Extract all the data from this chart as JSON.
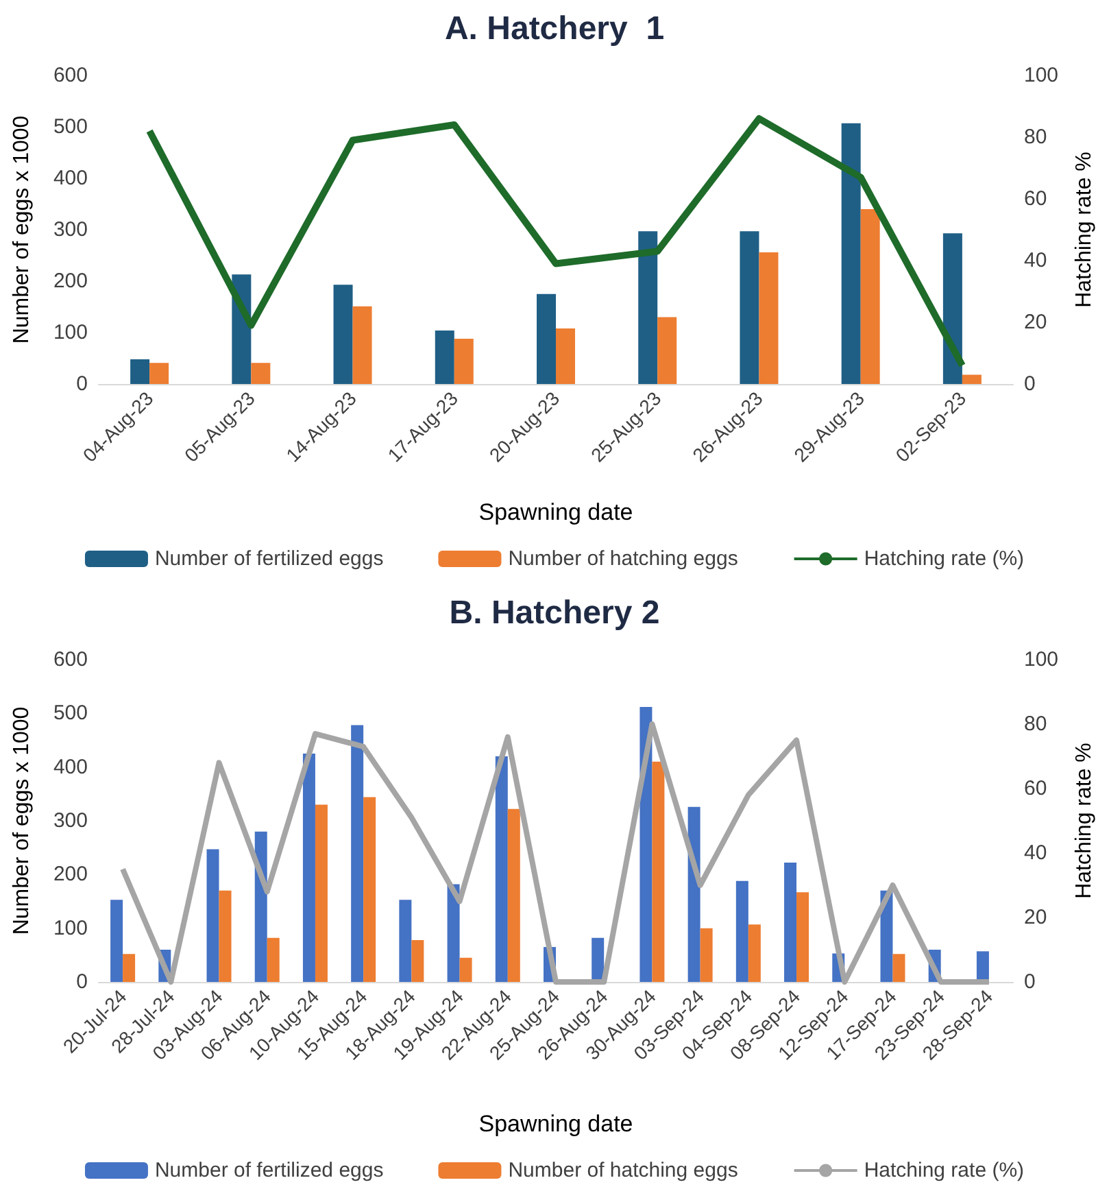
{
  "chart_data": [
    {
      "type": "bar",
      "title": "A. Hatchery  1",
      "xlabel": "Spawning date",
      "ylabel": "Number of eggs x 1000",
      "y2label": "Hatching rate %",
      "categories": [
        "04-Aug-23",
        "05-Aug-23",
        "14-Aug-23",
        "17-Aug-23",
        "20-Aug-23",
        "25-Aug-23",
        "26-Aug-23",
        "29-Aug-23",
        "02-Sep-23"
      ],
      "series": [
        {
          "name": "Number of fertilized eggs",
          "color": "#1f5f86",
          "values": [
            48,
            213,
            193,
            104,
            175,
            297,
            297,
            507,
            293
          ]
        },
        {
          "name": "Number of hatching eggs",
          "color": "#ed7d31",
          "values": [
            41,
            41,
            151,
            88,
            108,
            130,
            256,
            340,
            18
          ]
        },
        {
          "name": "Hatching rate (%)",
          "type": "line",
          "axis": "y2",
          "color": "#1e6b2a",
          "values": [
            82,
            19,
            79,
            84,
            39,
            43,
            86,
            67,
            6
          ]
        }
      ],
      "ylim": [
        0,
        600
      ],
      "yticks": [
        0,
        100,
        200,
        300,
        400,
        500,
        600
      ],
      "y2lim": [
        0,
        100
      ],
      "y2ticks": [
        0,
        20,
        40,
        60,
        80,
        100
      ],
      "legend": "bottom",
      "grid": false,
      "marker": "none"
    },
    {
      "type": "bar",
      "title": "B. Hatchery 2",
      "xlabel": "Spawning date",
      "ylabel": "Number of eggs x 1000",
      "y2label": "Hatching rate %",
      "categories": [
        "20-Jul-24",
        "28-Jul-24",
        "03-Aug-24",
        "06-Aug-24",
        "10-Aug-24",
        "15-Aug-24",
        "18-Aug-24",
        "19-Aug-24",
        "22-Aug-24",
        "25-Aug-24",
        "26-Aug-24",
        "30-Aug-24",
        "03-Sep-24",
        "04-Sep-24",
        "08-Sep-24",
        "12-Sep-24",
        "17-Sep-24",
        "23-Sep-24",
        "28-Sep-24"
      ],
      "series": [
        {
          "name": "Number of fertilized eggs",
          "color": "#4472c4",
          "values": [
            153,
            60,
            247,
            280,
            425,
            478,
            153,
            182,
            420,
            65,
            82,
            512,
            326,
            188,
            222,
            53,
            170,
            60,
            57
          ]
        },
        {
          "name": "Number of hatching eggs",
          "color": "#ed7d31",
          "values": [
            52,
            null,
            170,
            82,
            330,
            344,
            78,
            45,
            322,
            null,
            null,
            410,
            100,
            107,
            167,
            null,
            52,
            null,
            null
          ]
        },
        {
          "name": "Hatching rate (%)",
          "type": "line",
          "axis": "y2",
          "color": "#a5a5a5",
          "values": [
            35,
            0,
            68,
            28,
            77,
            73,
            51,
            25,
            76,
            0,
            0,
            80,
            30,
            58,
            75,
            0,
            30,
            0,
            0
          ]
        }
      ],
      "ylim": [
        0,
        600
      ],
      "yticks": [
        0,
        100,
        200,
        300,
        400,
        500,
        600
      ],
      "y2lim": [
        0,
        100
      ],
      "y2ticks": [
        0,
        20,
        40,
        60,
        80,
        100
      ],
      "legend": "bottom",
      "grid": false,
      "marker": "none"
    }
  ]
}
